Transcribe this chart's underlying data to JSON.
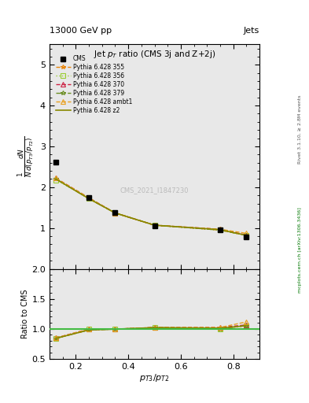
{
  "title_top": "13000 GeV pp",
  "title_right": "Jets",
  "plot_title": "Jet $p_T$ ratio (CMS 3j and Z+2j)",
  "cms_label": "CMS_2021_I1847230",
  "right_label_top": "Rivet 3.1.10, ≥ 2.8M events",
  "right_label_bottom": "mcplots.cern.ch [arXiv:1306.3436]",
  "xlabel": "$p_{T3}/p_{T2}$",
  "ylabel_ratio": "Ratio to CMS",
  "ylim_main": [
    0.0,
    5.5
  ],
  "ylim_ratio": [
    0.5,
    2.0
  ],
  "yticks_main": [
    1,
    2,
    3,
    4,
    5
  ],
  "yticks_ratio": [
    0.5,
    1.0,
    1.5,
    2.0
  ],
  "xlim": [
    0.1,
    0.9
  ],
  "xticks": [
    0.2,
    0.4,
    0.6,
    0.8
  ],
  "cms_data_x": [
    0.125,
    0.25,
    0.35,
    0.5,
    0.75,
    0.85
  ],
  "cms_data_y": [
    2.62,
    1.75,
    1.38,
    1.05,
    0.95,
    0.78
  ],
  "pythia_x": [
    0.125,
    0.25,
    0.35,
    0.5,
    0.75,
    0.85
  ],
  "pythia_355_y": [
    2.2,
    1.72,
    1.37,
    1.07,
    0.95,
    0.82
  ],
  "pythia_356_y": [
    2.18,
    1.73,
    1.37,
    1.07,
    0.95,
    0.82
  ],
  "pythia_370_y": [
    2.22,
    1.74,
    1.37,
    1.07,
    0.97,
    0.83
  ],
  "pythia_379_y": [
    2.2,
    1.72,
    1.37,
    1.07,
    0.95,
    0.82
  ],
  "pythia_ambt1_y": [
    2.22,
    1.74,
    1.37,
    1.07,
    0.97,
    0.87
  ],
  "pythia_z2_y": [
    2.2,
    1.72,
    1.37,
    1.07,
    0.96,
    0.82
  ],
  "ratio_355_y": [
    0.84,
    0.98,
    0.993,
    1.019,
    1.0,
    1.051
  ],
  "ratio_356_y": [
    0.832,
    0.989,
    0.993,
    1.019,
    1.0,
    1.051
  ],
  "ratio_370_y": [
    0.847,
    0.994,
    0.993,
    1.019,
    1.021,
    1.064
  ],
  "ratio_379_y": [
    0.84,
    0.98,
    0.993,
    1.019,
    1.0,
    1.051
  ],
  "ratio_ambt1_y": [
    0.847,
    0.994,
    0.993,
    1.019,
    1.021,
    1.115
  ],
  "ratio_z2_y": [
    0.84,
    0.98,
    0.993,
    1.019,
    1.01,
    1.051
  ],
  "color_355": "#E8850A",
  "color_356": "#9ACD32",
  "color_370": "#CC2244",
  "color_379": "#6B8E23",
  "color_ambt1": "#E8A020",
  "color_z2": "#888800",
  "bg_color": "#e8e8e8",
  "ratio_line_color": "#44BB44"
}
